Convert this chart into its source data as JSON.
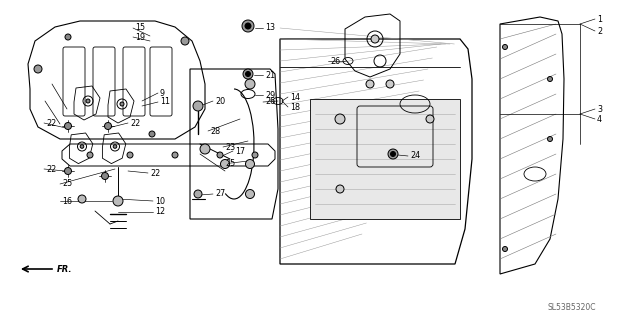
{
  "bg_color": "#ffffff",
  "fig_width": 6.4,
  "fig_height": 3.19,
  "watermark": "SL53B5320C",
  "lw_main": 0.8,
  "lw_thin": 0.5,
  "lw_leader": 0.5,
  "fs_label": 5.5
}
